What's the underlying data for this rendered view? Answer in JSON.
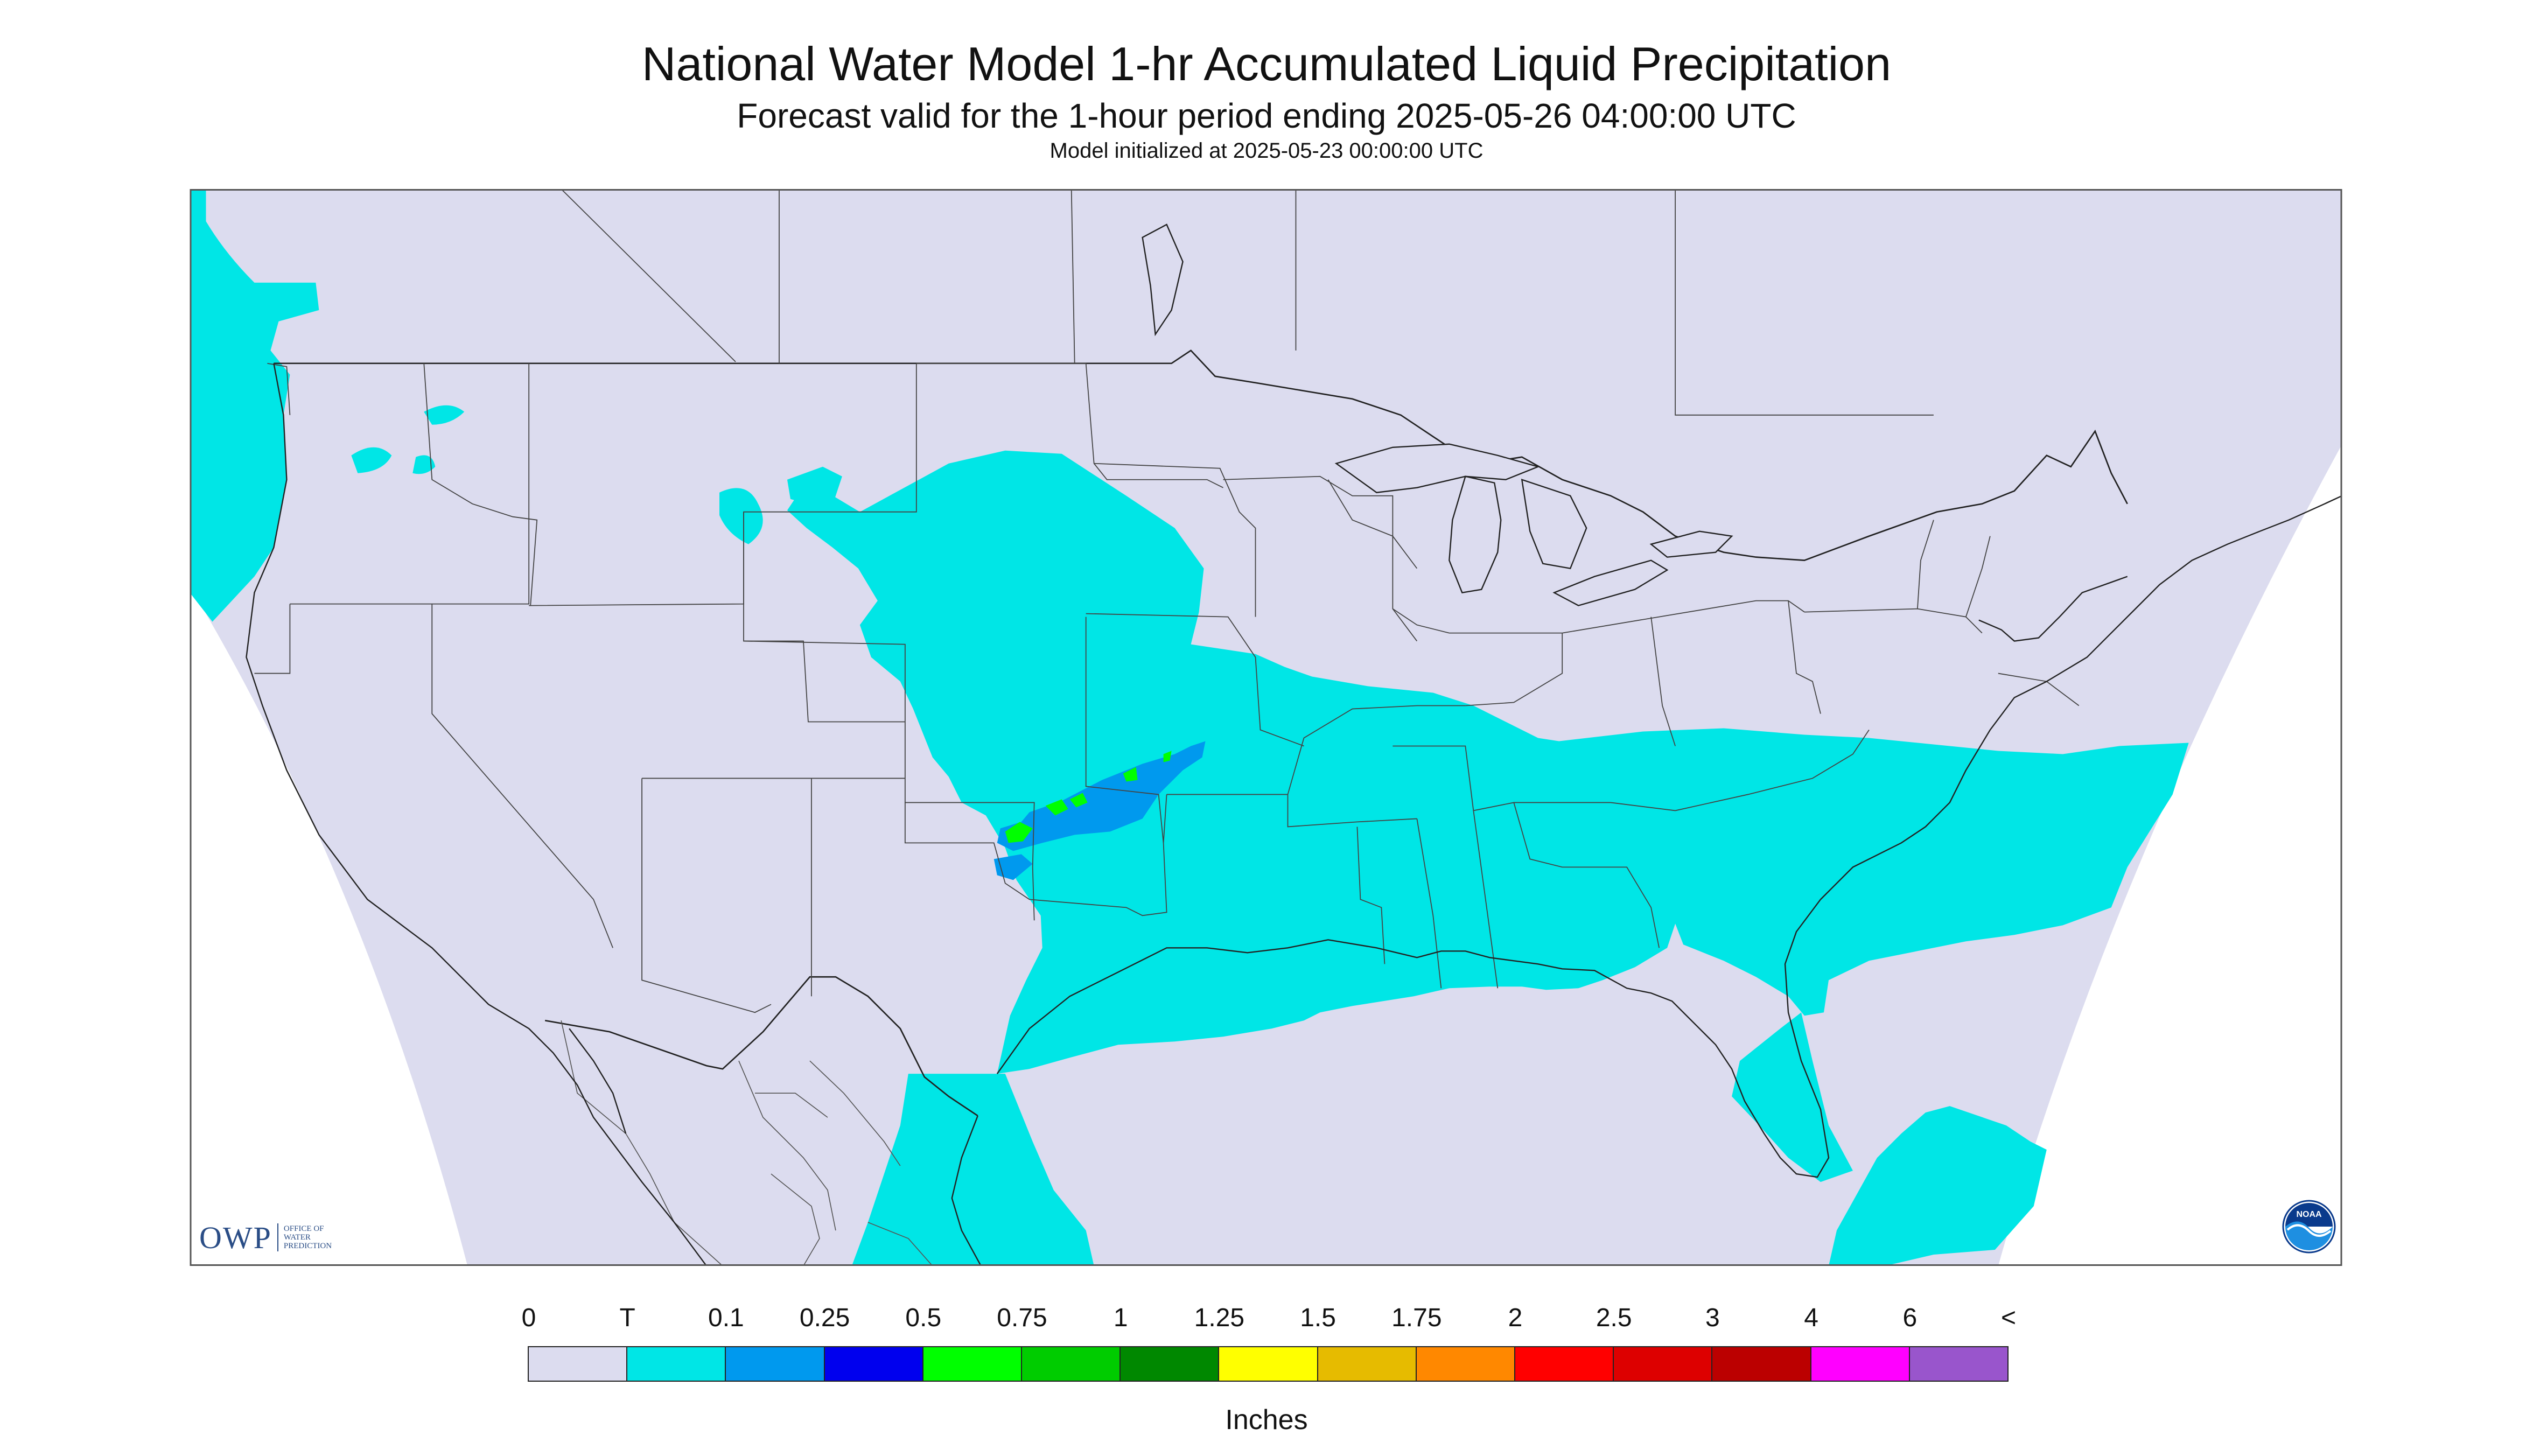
{
  "header": {
    "title": "National Water Model 1-hr Accumulated Liquid Precipitation",
    "subtitle": "Forecast valid for the 1-hour period ending 2025-05-26 04:00:00 UTC",
    "init_line": "Model initialized at 2025-05-23 00:00:00 UTC"
  },
  "map": {
    "background_color": "#dcdcef",
    "border_color": "#333333",
    "precip_regions": [
      {
        "name": "west-coast-band",
        "category": "T"
      },
      {
        "name": "central-plains-to-southeast-band",
        "category": "T"
      },
      {
        "name": "oklahoma-core",
        "category": "0.1"
      },
      {
        "name": "oklahoma-peak-cells",
        "category": "0.5"
      },
      {
        "name": "florida-and-southern-gulf",
        "category": "T"
      },
      {
        "name": "mexico-gulf-coast",
        "category": "T"
      },
      {
        "name": "western-scattered-showers",
        "category": "T"
      }
    ]
  },
  "legend": {
    "tick_labels": [
      "0",
      "T",
      "0.1",
      "0.25",
      "0.5",
      "0.75",
      "1",
      "1.25",
      "1.5",
      "1.75",
      "2",
      "2.5",
      "3",
      "4",
      "6",
      "<"
    ],
    "colors": [
      "#dcdcef",
      "#00e6e6",
      "#0099ee",
      "#0000ee",
      "#00ff00",
      "#00cc00",
      "#008800",
      "#ffff00",
      "#e6bb00",
      "#ff8800",
      "#ff0000",
      "#dd0000",
      "#bb0000",
      "#ff00ff",
      "#9955cc"
    ],
    "units": "Inches"
  },
  "logos": {
    "owp": {
      "letters": "OWP",
      "line1": "OFFICE OF",
      "line2": "WATER",
      "line3": "PREDICTION"
    },
    "noaa": {
      "text": "NOAA"
    }
  }
}
